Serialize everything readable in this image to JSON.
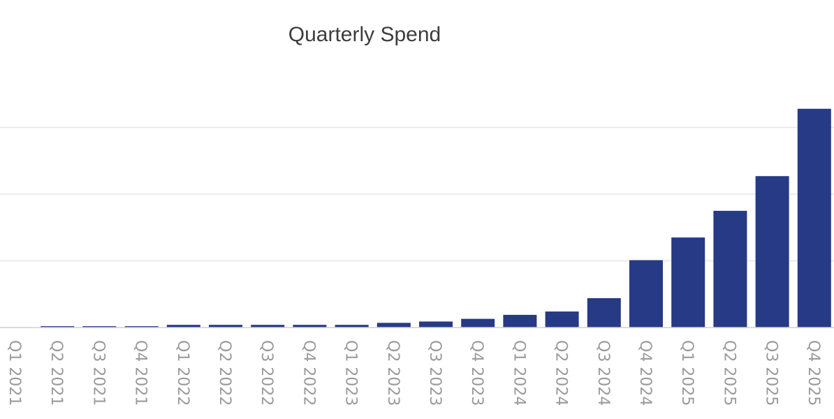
{
  "chart_data": {
    "type": "bar",
    "title": "Quarterly Spend",
    "xlabel": "",
    "ylabel": "",
    "categories": [
      "Q1 2021",
      "Q2 2021",
      "Q3 2021",
      "Q4 2021",
      "Q1 2022",
      "Q2 2022",
      "Q3 2022",
      "Q4 2022",
      "Q1 2023",
      "Q2 2023",
      "Q3 2023",
      "Q4 2023",
      "Q1 2024",
      "Q2 2024",
      "Q3 2024",
      "Q4 2024",
      "Q1 2025",
      "Q2 2025",
      "Q3 2025",
      "Q4 2025"
    ],
    "values": [
      0,
      0.2,
      0.2,
      0.2,
      0.4,
      0.4,
      0.4,
      0.4,
      0.4,
      0.7,
      0.9,
      1.3,
      1.9,
      2.4,
      4.4,
      10.1,
      13.5,
      17.5,
      22.7,
      32.8
    ],
    "ylim": [
      0,
      40
    ],
    "gridlines": [
      10,
      20,
      30
    ],
    "y_tick_labels_visible": false,
    "legend": "none",
    "bar_color": "#263a85"
  }
}
